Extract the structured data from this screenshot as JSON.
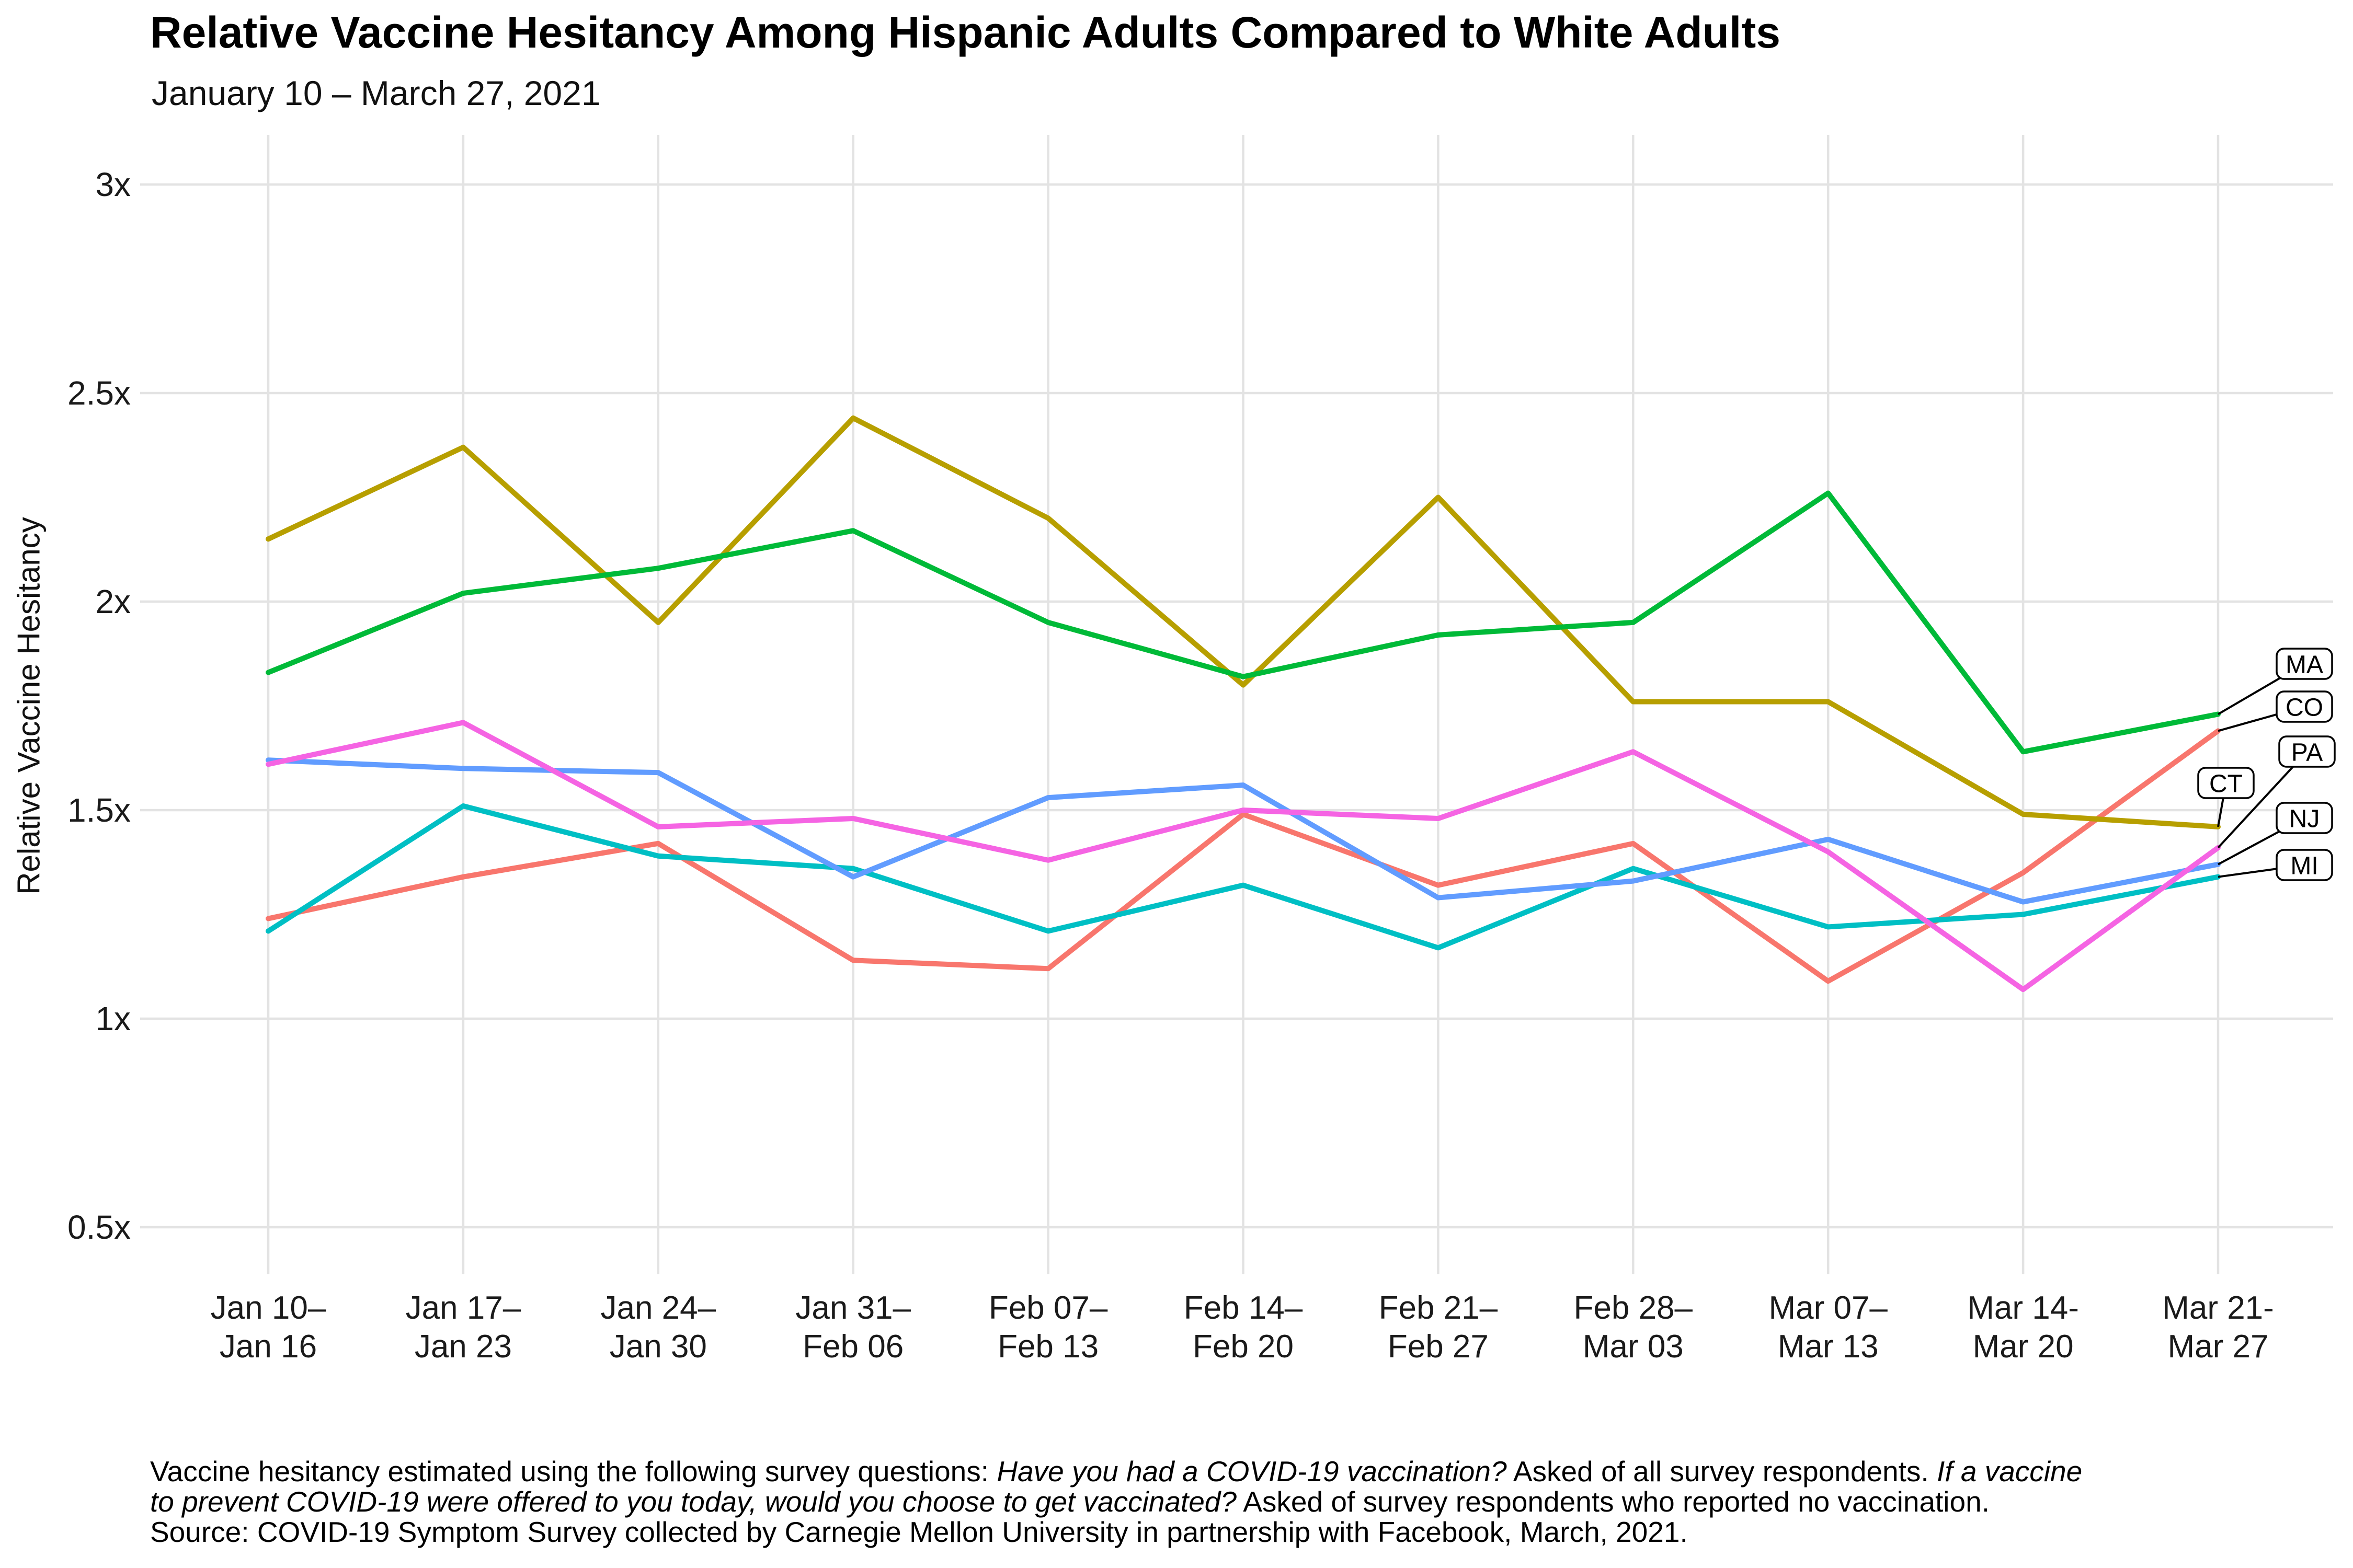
{
  "chart_data": {
    "type": "line",
    "title": "Relative Vaccine Hesitancy Among Hispanic Adults Compared to White Adults",
    "subtitle": "January 10 – March 27, 2021",
    "ylabel": "Relative Vaccine Hesitancy",
    "xlabel": "",
    "grid": true,
    "grid_color": "#e3e3e3",
    "background_color": "#ffffff",
    "legend": {
      "type": "direct-state-labels",
      "position": "right"
    },
    "ylim": [
      0.5,
      3
    ],
    "y_ticks": [
      {
        "value": 0.5,
        "label": "0.5x"
      },
      {
        "value": 1,
        "label": "1x"
      },
      {
        "value": 1.5,
        "label": "1.5x"
      },
      {
        "value": 2,
        "label": "2x"
      },
      {
        "value": 2.5,
        "label": "2.5x"
      },
      {
        "value": 3,
        "label": "3x"
      }
    ],
    "x_categories": [
      [
        "Jan 10–",
        "Jan 16"
      ],
      [
        "Jan 17–",
        "Jan 23"
      ],
      [
        "Jan 24–",
        "Jan 30"
      ],
      [
        "Jan 31–",
        "Feb 06"
      ],
      [
        "Feb 07–",
        "Feb 13"
      ],
      [
        "Feb 14–",
        "Feb 20"
      ],
      [
        "Feb 21–",
        "Feb 27"
      ],
      [
        "Feb 28–",
        "Mar 03"
      ],
      [
        "Mar 07–",
        "Mar 13"
      ],
      [
        "Mar 14-",
        "Mar 20"
      ],
      [
        "Mar 21-",
        "Mar 27"
      ]
    ],
    "series": [
      {
        "name": "CO",
        "color": "#F8766D",
        "values": [
          1.24,
          1.34,
          1.42,
          1.14,
          1.12,
          1.49,
          1.32,
          1.42,
          1.09,
          1.35,
          1.69
        ]
      },
      {
        "name": "CT",
        "color": "#B79F00",
        "values": [
          2.15,
          2.37,
          1.95,
          2.44,
          2.2,
          1.8,
          2.25,
          1.76,
          1.76,
          1.49,
          1.46
        ]
      },
      {
        "name": "MA",
        "color": "#00BA38",
        "values": [
          1.83,
          2.02,
          2.08,
          2.17,
          1.95,
          1.82,
          1.92,
          1.95,
          2.26,
          1.64,
          1.73
        ]
      },
      {
        "name": "MI",
        "color": "#00BFC4",
        "values": [
          1.21,
          1.51,
          1.39,
          1.36,
          1.21,
          1.32,
          1.17,
          1.36,
          1.22,
          1.25,
          1.34
        ]
      },
      {
        "name": "NJ",
        "color": "#619CFF",
        "values": [
          1.62,
          1.6,
          1.59,
          1.34,
          1.53,
          1.56,
          1.29,
          1.33,
          1.43,
          1.28,
          1.37
        ]
      },
      {
        "name": "PA",
        "color": "#F564E3",
        "values": [
          1.61,
          1.71,
          1.46,
          1.48,
          1.38,
          1.5,
          1.48,
          1.64,
          1.4,
          1.07,
          1.41
        ]
      }
    ]
  },
  "footnote": {
    "lines": [
      {
        "segments": [
          {
            "text": "Vaccine hesitancy estimated using the following survey questions: ",
            "italic": false
          },
          {
            "text": "Have you had a COVID-19 vaccination?",
            "italic": true
          },
          {
            "text": " Asked of all survey respondents. ",
            "italic": false
          },
          {
            "text": "If a vaccine",
            "italic": true
          }
        ]
      },
      {
        "segments": [
          {
            "text": "to prevent COVID-19 were offered to you today, would you choose to get vaccinated?",
            "italic": true
          },
          {
            "text": " Asked of survey respondents who reported no vaccination.",
            "italic": false
          }
        ]
      },
      {
        "segments": [
          {
            "text": "Source: COVID-19 Symptom Survey collected by Carnegie Mellon University in partnership with Facebook, March, 2021.",
            "italic": false
          }
        ]
      }
    ]
  }
}
